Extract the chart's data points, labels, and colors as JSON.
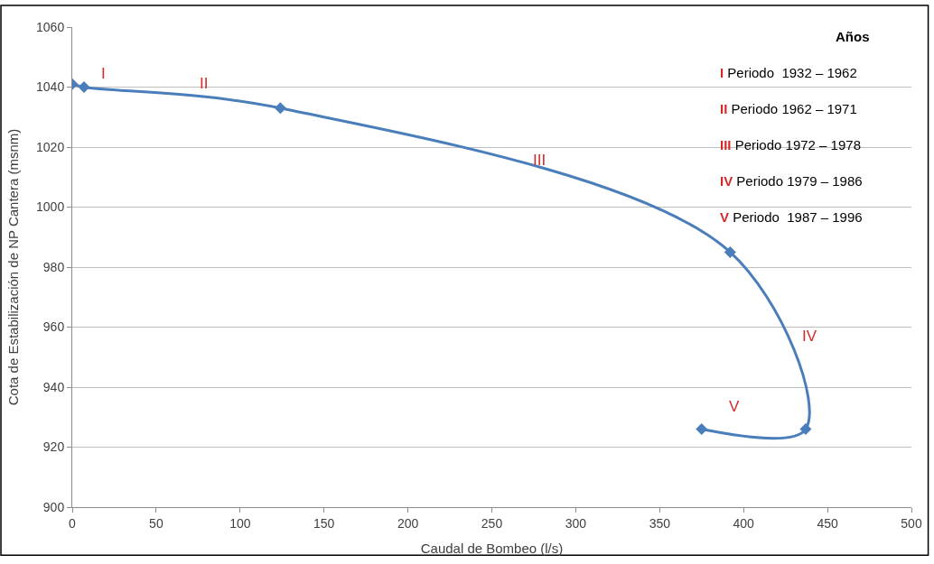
{
  "chart_data": {
    "type": "line",
    "xlabel": "Caudal de Bombeo (l/s)",
    "ylabel": "Cota de Estabilización de NP Cantera (msnm)",
    "x": [
      0,
      7,
      124,
      392,
      437,
      375
    ],
    "series": [
      {
        "color": "#4a7ebb",
        "values": [
          1041,
          1040,
          1033,
          985,
          926,
          926
        ]
      }
    ],
    "xlim": [
      0,
      500
    ],
    "xticks": [
      0,
      50,
      100,
      150,
      200,
      250,
      300,
      350,
      400,
      450,
      500
    ],
    "ylim": [
      900,
      1060
    ],
    "yticks": [
      900,
      920,
      940,
      960,
      980,
      1000,
      1020,
      1040,
      1060
    ],
    "grid": "y",
    "marker": "diamond",
    "line_style": "solid",
    "annotations": [
      "I",
      "II",
      "III",
      "IV",
      "V",
      "Años",
      "I Periodo  1932 – 1962",
      "II Periodo 1962 – 1971",
      "III Periodo 1972 – 1978",
      "IV Periodo 1979 – 1986",
      "V Periodo  1987 – 1996"
    ]
  }
}
